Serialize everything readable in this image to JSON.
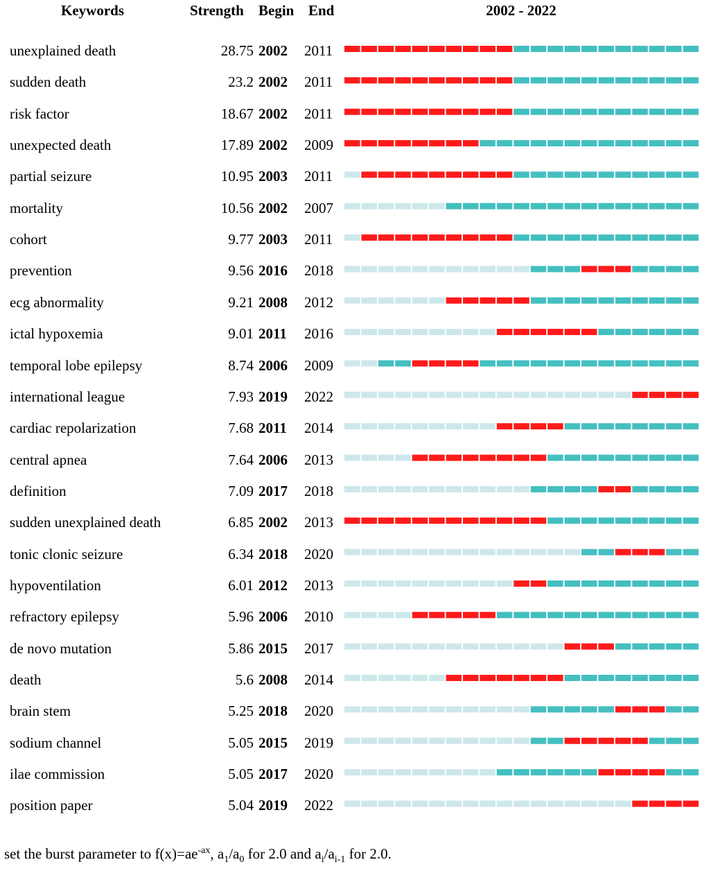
{
  "chart_data": {
    "type": "table",
    "title": "",
    "headers": {
      "keywords": "Keywords",
      "strength": "Strength",
      "begin": "Begin",
      "end": "End",
      "range": "2002 - 2022"
    },
    "year_start": 2002,
    "year_end": 2022,
    "colors": {
      "burst": "#ff1a1a",
      "active": "#44bfc0",
      "inactive": "#cde8ea"
    },
    "rows": [
      {
        "keyword": "unexplained death",
        "strength": "28.75",
        "begin": "2002",
        "end": "2011",
        "first_year": 2002
      },
      {
        "keyword": "sudden death",
        "strength": "23.2",
        "begin": "2002",
        "end": "2011",
        "first_year": 2002
      },
      {
        "keyword": "risk factor",
        "strength": "18.67",
        "begin": "2002",
        "end": "2011",
        "first_year": 2002
      },
      {
        "keyword": "unexpected death",
        "strength": "17.89",
        "begin": "2002",
        "end": "2009",
        "first_year": 2002
      },
      {
        "keyword": "partial seizure",
        "strength": "10.95",
        "begin": "2003",
        "end": "2011",
        "first_year": 2003
      },
      {
        "keyword": "mortality",
        "strength": "10.56",
        "begin": "2002",
        "end": "2007",
        "first_year": 2002,
        "burst_color": "#cde8ea"
      },
      {
        "keyword": "cohort",
        "strength": "9.77",
        "begin": "2003",
        "end": "2011",
        "first_year": 2003
      },
      {
        "keyword": "prevention",
        "strength": "9.56",
        "begin": "2016",
        "end": "2018",
        "first_year": 2013
      },
      {
        "keyword": "ecg abnormality",
        "strength": "9.21",
        "begin": "2008",
        "end": "2012",
        "first_year": 2008
      },
      {
        "keyword": "ictal hypoxemia",
        "strength": "9.01",
        "begin": "2011",
        "end": "2016",
        "first_year": 2011
      },
      {
        "keyword": "temporal lobe epilepsy",
        "strength": "8.74",
        "begin": "2006",
        "end": "2009",
        "first_year": 2004
      },
      {
        "keyword": "international league",
        "strength": "7.93",
        "begin": "2019",
        "end": "2022",
        "first_year": 2019
      },
      {
        "keyword": "cardiac repolarization",
        "strength": "7.68",
        "begin": "2011",
        "end": "2014",
        "first_year": 2011
      },
      {
        "keyword": "central apnea",
        "strength": "7.64",
        "begin": "2006",
        "end": "2013",
        "first_year": 2006
      },
      {
        "keyword": "definition",
        "strength": "7.09",
        "begin": "2017",
        "end": "2018",
        "first_year": 2013
      },
      {
        "keyword": "sudden unexplained death",
        "strength": "6.85",
        "begin": "2002",
        "end": "2013",
        "first_year": 2002
      },
      {
        "keyword": "tonic clonic seizure",
        "strength": "6.34",
        "begin": "2018",
        "end": "2020",
        "first_year": 2016
      },
      {
        "keyword": "hypoventilation",
        "strength": "6.01",
        "begin": "2012",
        "end": "2013",
        "first_year": 2012
      },
      {
        "keyword": "refractory epilepsy",
        "strength": "5.96",
        "begin": "2006",
        "end": "2010",
        "first_year": 2006
      },
      {
        "keyword": "de novo mutation",
        "strength": "5.86",
        "begin": "2015",
        "end": "2017",
        "first_year": 2015
      },
      {
        "keyword": "death",
        "strength": "5.6",
        "begin": "2008",
        "end": "2014",
        "first_year": 2008
      },
      {
        "keyword": "brain stem",
        "strength": "5.25",
        "begin": "2018",
        "end": "2020",
        "first_year": 2013
      },
      {
        "keyword": "sodium channel",
        "strength": "5.05",
        "begin": "2015",
        "end": "2019",
        "first_year": 2013
      },
      {
        "keyword": "ilae commission",
        "strength": "5.05",
        "begin": "2017",
        "end": "2020",
        "first_year": 2011
      },
      {
        "keyword": "position paper",
        "strength": "5.04",
        "begin": "2019",
        "end": "2022",
        "first_year": 2019
      }
    ]
  },
  "footnote": {
    "prefix": "set the burst parameter to f(x)=ae",
    "exp": "-ax",
    "mid1": ", a",
    "sub1": "1",
    "mid2": "/a",
    "sub0": "0",
    "mid3": " for 2.0 and a",
    "subi": "i",
    "mid4": "/a",
    "subim1": "i-1",
    "suffix": " for 2.0."
  }
}
